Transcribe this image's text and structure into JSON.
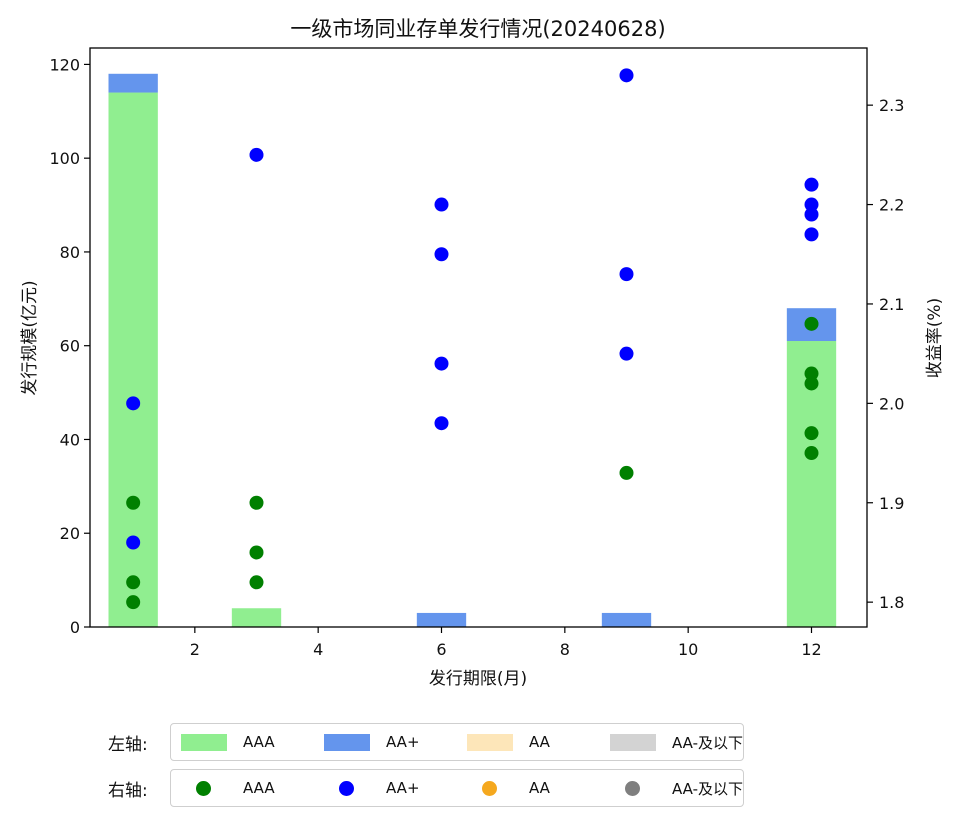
{
  "chart_data": {
    "type": "bar",
    "title": "一级市场同业存单发行情况(20240628)",
    "xlabel": "发行期限(月)",
    "ylabel_left": "发行规模(亿元)",
    "ylabel_right": "收益率(%)",
    "xlim": [
      0.3,
      12.9
    ],
    "ylim_left": [
      0,
      123.5
    ],
    "ylim_right": [
      1.775,
      2.3575
    ],
    "xticks": [
      2,
      4,
      6,
      8,
      10,
      12
    ],
    "yticks_left": [
      0,
      20,
      40,
      60,
      80,
      100,
      120
    ],
    "yticks_right": [
      1.8,
      1.9,
      2.0,
      2.1,
      2.2,
      2.3
    ],
    "grid": false,
    "bars": {
      "categories": [
        1,
        3,
        6,
        9,
        12
      ],
      "series": [
        {
          "name": "AAA",
          "color": "#90ee90",
          "values": [
            114,
            4,
            0,
            0,
            61
          ]
        },
        {
          "name": "AA+",
          "color": "#6495ed",
          "values": [
            4,
            0,
            3,
            3,
            7
          ]
        }
      ]
    },
    "scatter": {
      "series": [
        {
          "name": "AAA",
          "color": "#008000",
          "points": [
            [
              1,
              1.8
            ],
            [
              1,
              1.82
            ],
            [
              1,
              1.9
            ],
            [
              3,
              1.82
            ],
            [
              3,
              1.85
            ],
            [
              3,
              1.9
            ],
            [
              9,
              1.93
            ],
            [
              12,
              1.95
            ],
            [
              12,
              1.97
            ],
            [
              12,
              2.02
            ],
            [
              12,
              2.03
            ],
            [
              12,
              2.08
            ]
          ]
        },
        {
          "name": "AA+",
          "color": "#0000ff",
          "points": [
            [
              1,
              1.86
            ],
            [
              1,
              2.0
            ],
            [
              3,
              2.25
            ],
            [
              6,
              1.98
            ],
            [
              6,
              2.04
            ],
            [
              6,
              2.15
            ],
            [
              6,
              2.2
            ],
            [
              9,
              2.05
            ],
            [
              9,
              2.13
            ],
            [
              9,
              2.33
            ],
            [
              12,
              2.17
            ],
            [
              12,
              2.19
            ],
            [
              12,
              2.2
            ],
            [
              12,
              2.22
            ]
          ]
        }
      ]
    }
  },
  "legend": {
    "left": {
      "label": "左轴:",
      "items": [
        {
          "name": "AAA",
          "color": "#90ee90"
        },
        {
          "name": "AA+",
          "color": "#6495ed"
        },
        {
          "name": "AA",
          "color": "#fde6b9"
        },
        {
          "name": "AA-及以下",
          "color": "#d3d3d3"
        }
      ]
    },
    "right": {
      "label": "右轴:",
      "items": [
        {
          "name": "AAA",
          "color": "#008000"
        },
        {
          "name": "AA+",
          "color": "#0000ff"
        },
        {
          "name": "AA",
          "color": "#f5a81e"
        },
        {
          "name": "AA-及以下",
          "color": "#7f7f7f"
        }
      ]
    }
  }
}
